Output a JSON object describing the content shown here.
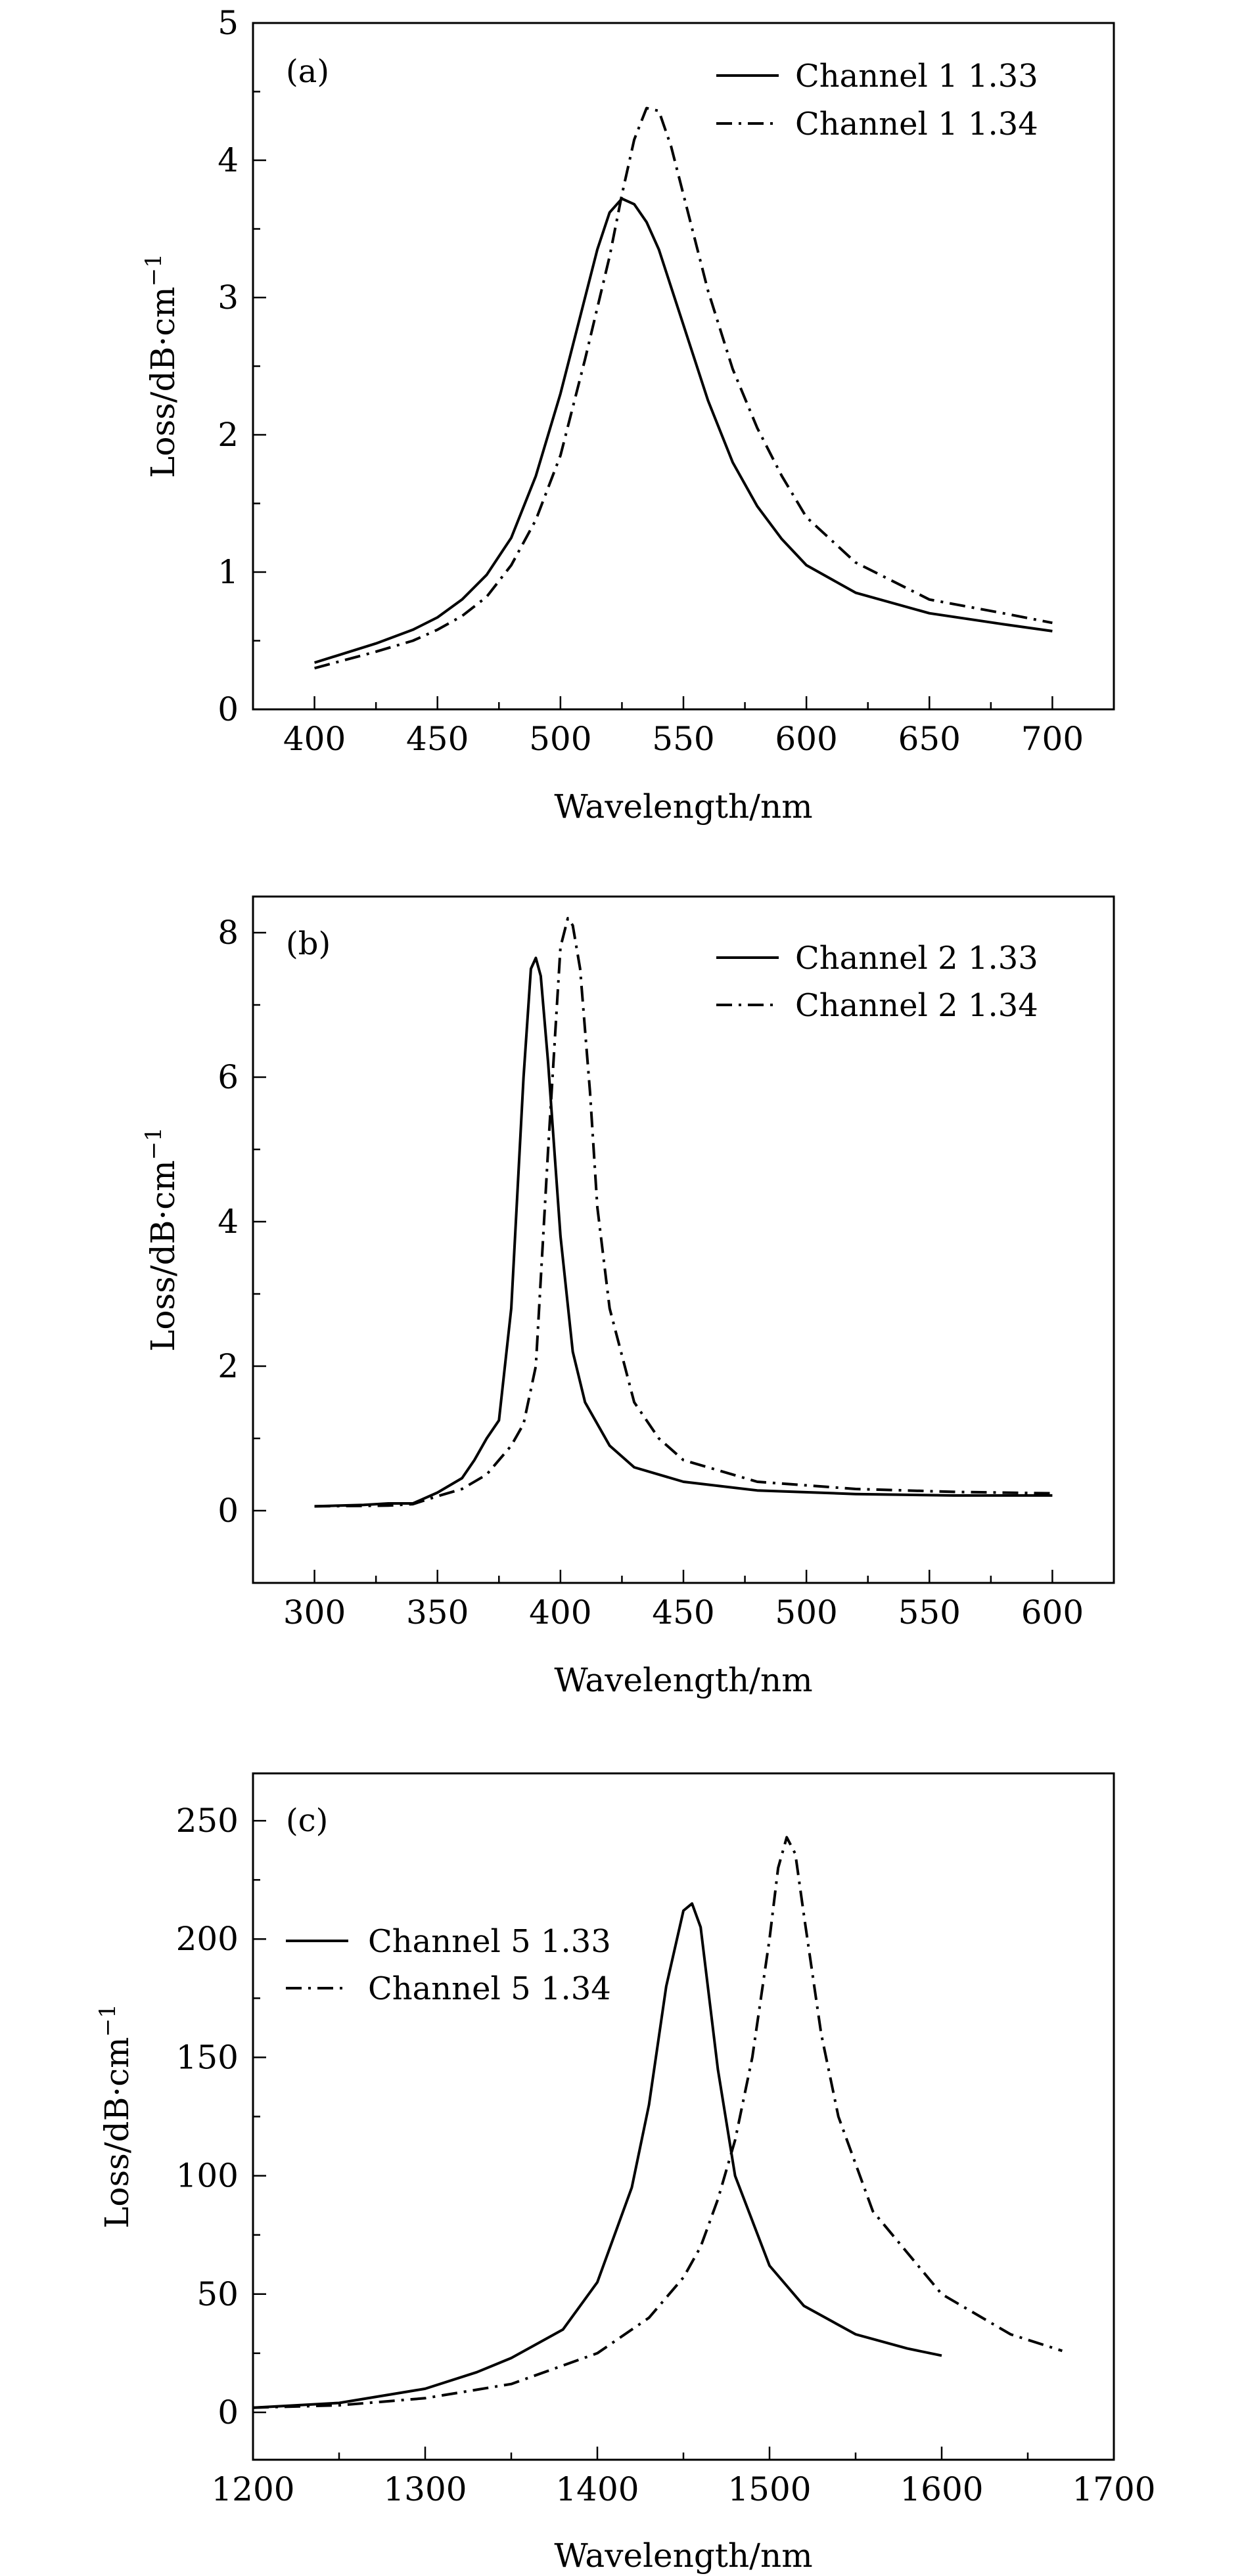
{
  "chart_data": [
    {
      "type": "line",
      "panel_label": "(a)",
      "xlabel": "Wavelength/nm",
      "ylabel": "Loss/dB·cm",
      "ylabel_sup": "−1",
      "xlim": [
        375,
        725
      ],
      "ylim": [
        0,
        5
      ],
      "xticks": [
        400,
        450,
        500,
        550,
        600,
        650,
        700
      ],
      "yticks": [
        0,
        1,
        2,
        3,
        4,
        5
      ],
      "legend_position": "top-right",
      "series": [
        {
          "name": "Channel 1 1.33",
          "line_style": "solid",
          "x": [
            400,
            425,
            440,
            450,
            460,
            470,
            480,
            490,
            500,
            510,
            515,
            520,
            525,
            530,
            535,
            540,
            550,
            560,
            570,
            580,
            590,
            600,
            620,
            650,
            680,
            700
          ],
          "y": [
            0.34,
            0.48,
            0.58,
            0.67,
            0.8,
            0.98,
            1.25,
            1.7,
            2.3,
            3.0,
            3.35,
            3.62,
            3.72,
            3.68,
            3.55,
            3.35,
            2.8,
            2.25,
            1.8,
            1.48,
            1.24,
            1.05,
            0.85,
            0.7,
            0.62,
            0.57
          ]
        },
        {
          "name": "Channel 1 1.34",
          "line_style": "dash-dot",
          "x": [
            400,
            425,
            440,
            450,
            460,
            470,
            480,
            490,
            500,
            510,
            520,
            525,
            530,
            535,
            540,
            545,
            550,
            560,
            570,
            580,
            590,
            600,
            620,
            650,
            680,
            700
          ],
          "y": [
            0.3,
            0.42,
            0.5,
            0.58,
            0.68,
            0.82,
            1.05,
            1.38,
            1.85,
            2.55,
            3.3,
            3.75,
            4.15,
            4.38,
            4.36,
            4.1,
            3.75,
            3.05,
            2.48,
            2.05,
            1.7,
            1.4,
            1.07,
            0.8,
            0.7,
            0.63
          ]
        }
      ]
    },
    {
      "type": "line",
      "panel_label": "(b)",
      "xlabel": "Wavelength/nm",
      "ylabel": "Loss/dB·cm",
      "ylabel_sup": "−1",
      "xlim": [
        275,
        625
      ],
      "ylim": [
        -1,
        8.5
      ],
      "xticks": [
        300,
        350,
        400,
        450,
        500,
        550,
        600
      ],
      "yticks": [
        0,
        2,
        4,
        6,
        8
      ],
      "legend_position": "top-right",
      "series": [
        {
          "name": "Channel 2 1.33",
          "line_style": "solid",
          "x": [
            300,
            320,
            330,
            340,
            350,
            360,
            365,
            370,
            375,
            380,
            385,
            388,
            390,
            392,
            395,
            400,
            405,
            410,
            420,
            430,
            450,
            480,
            520,
            560,
            600
          ],
          "y": [
            0.06,
            0.08,
            0.1,
            0.1,
            0.25,
            0.45,
            0.7,
            1.0,
            1.25,
            2.8,
            6.0,
            7.5,
            7.65,
            7.4,
            6.2,
            3.8,
            2.2,
            1.5,
            0.9,
            0.6,
            0.4,
            0.28,
            0.23,
            0.21,
            0.21
          ]
        },
        {
          "name": "Channel 2 1.34",
          "line_style": "dash-dot",
          "x": [
            300,
            330,
            340,
            350,
            360,
            370,
            380,
            385,
            390,
            395,
            400,
            403,
            405,
            408,
            412,
            415,
            420,
            430,
            440,
            450,
            480,
            520,
            560,
            600
          ],
          "y": [
            0.06,
            0.07,
            0.09,
            0.2,
            0.3,
            0.5,
            0.9,
            1.2,
            2.0,
            5.0,
            7.8,
            8.2,
            8.1,
            7.5,
            5.8,
            4.2,
            2.8,
            1.5,
            1.0,
            0.7,
            0.4,
            0.3,
            0.26,
            0.24
          ]
        }
      ]
    },
    {
      "type": "line",
      "panel_label": "(c)",
      "xlabel": "Wavelength/nm",
      "ylabel": "Loss/dB·cm",
      "ylabel_sup": "−1",
      "xlim": [
        1200,
        1700
      ],
      "ylim": [
        -20,
        270
      ],
      "xticks": [
        1200,
        1300,
        1400,
        1500,
        1600,
        1700
      ],
      "yticks": [
        0,
        50,
        100,
        150,
        200,
        250
      ],
      "legend_position": "upper-left",
      "series": [
        {
          "name": "Channel 5 1.33",
          "line_style": "solid",
          "x": [
            1200,
            1250,
            1300,
            1330,
            1350,
            1380,
            1400,
            1420,
            1430,
            1440,
            1450,
            1455,
            1460,
            1470,
            1480,
            1500,
            1520,
            1550,
            1580,
            1600
          ],
          "y": [
            2,
            4,
            10,
            17,
            23,
            35,
            55,
            95,
            130,
            180,
            212,
            215,
            205,
            145,
            100,
            62,
            45,
            33,
            27,
            24
          ]
        },
        {
          "name": "Channel 5 1.34",
          "line_style": "dash-dot",
          "x": [
            1200,
            1250,
            1300,
            1350,
            1400,
            1430,
            1450,
            1460,
            1470,
            1480,
            1490,
            1500,
            1505,
            1510,
            1515,
            1520,
            1530,
            1540,
            1560,
            1600,
            1640,
            1670
          ],
          "y": [
            2,
            3,
            6,
            12,
            25,
            40,
            57,
            70,
            90,
            115,
            150,
            200,
            230,
            243,
            236,
            210,
            160,
            125,
            85,
            50,
            33,
            26
          ]
        }
      ]
    }
  ]
}
